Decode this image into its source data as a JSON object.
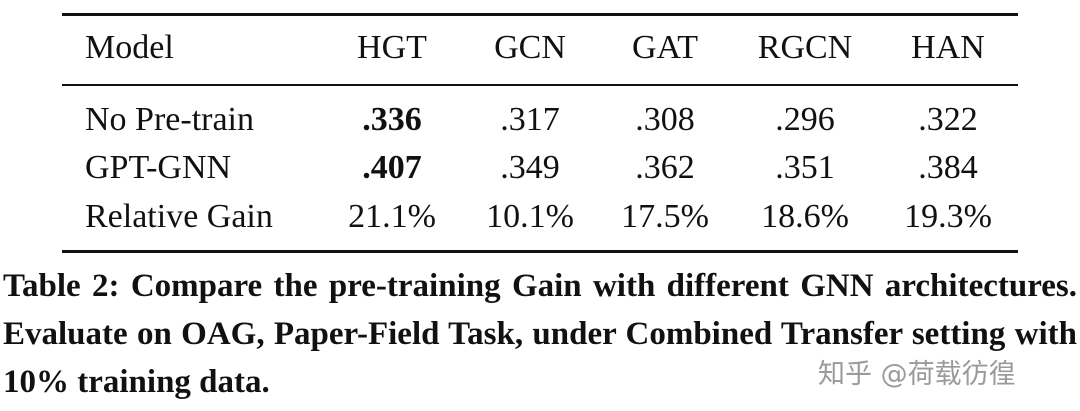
{
  "table": {
    "header": [
      "Model",
      "HGT",
      "GCN",
      "GAT",
      "RGCN",
      "HAN"
    ],
    "rows": [
      [
        {
          "text": "No Pre-train"
        },
        {
          "text": ".336",
          "bold": true
        },
        {
          "text": ".317"
        },
        {
          "text": ".308"
        },
        {
          "text": ".296"
        },
        {
          "text": ".322"
        }
      ],
      [
        {
          "text": "GPT-GNN"
        },
        {
          "text": ".407",
          "bold": true
        },
        {
          "text": ".349"
        },
        {
          "text": ".362"
        },
        {
          "text": ".351"
        },
        {
          "text": ".384"
        }
      ],
      [
        {
          "text": "Relative Gain"
        },
        {
          "text": "21.1%"
        },
        {
          "text": "10.1%"
        },
        {
          "text": "17.5%"
        },
        {
          "text": "18.6%"
        },
        {
          "text": "19.3%"
        }
      ]
    ]
  },
  "caption": "Table 2: Compare the pre-training Gain with different GNN architectures. Evaluate on OAG, Paper-Field Task, under Combined Transfer setting with 10% training data.",
  "watermark": "知乎 @荷载彷徨"
}
